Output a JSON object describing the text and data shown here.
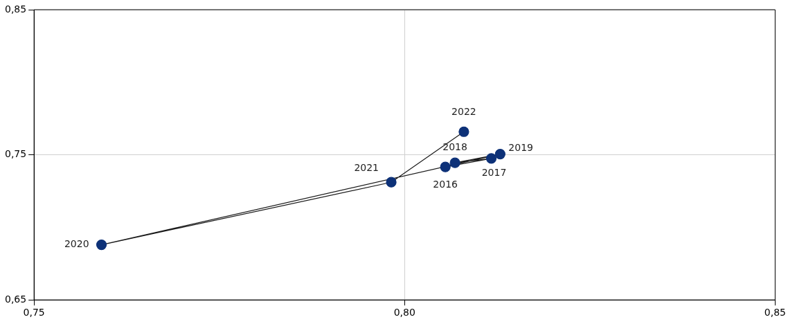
{
  "chart_data": {
    "type": "line",
    "marker": "circle",
    "grid": true,
    "xlim": [
      0.75,
      0.85
    ],
    "xticks": [
      {
        "value": 0.75,
        "label": "0,75"
      },
      {
        "value": 0.8,
        "label": "0,80"
      },
      {
        "value": 0.85,
        "label": "0,85"
      }
    ],
    "ylim": [
      0.65,
      0.85
    ],
    "yticks": [
      {
        "value": 0.65,
        "label": "0,65"
      },
      {
        "value": 0.75,
        "label": "0,75"
      },
      {
        "value": 0.85,
        "label": "0,85"
      }
    ],
    "series": [
      {
        "color": "#0d3178",
        "x": [
          0.8055,
          0.8117,
          0.8068,
          0.8129,
          0.7591,
          0.7982,
          0.808
        ],
        "values": [
          0.7416,
          0.7475,
          0.7445,
          0.7505,
          0.688,
          0.7311,
          0.7659
        ]
      }
    ],
    "annotations": [
      {
        "text": "2016",
        "x": 0.8055,
        "y": 0.7416
      },
      {
        "text": "2017",
        "x": 0.8117,
        "y": 0.7475
      },
      {
        "text": "2018",
        "x": 0.8068,
        "y": 0.7445
      },
      {
        "text": "2019",
        "x": 0.8129,
        "y": 0.7505
      },
      {
        "text": "2020",
        "x": 0.7591,
        "y": 0.688
      },
      {
        "text": "2021",
        "x": 0.7982,
        "y": 0.7311
      },
      {
        "text": "2022",
        "x": 0.808,
        "y": 0.7659
      }
    ]
  }
}
